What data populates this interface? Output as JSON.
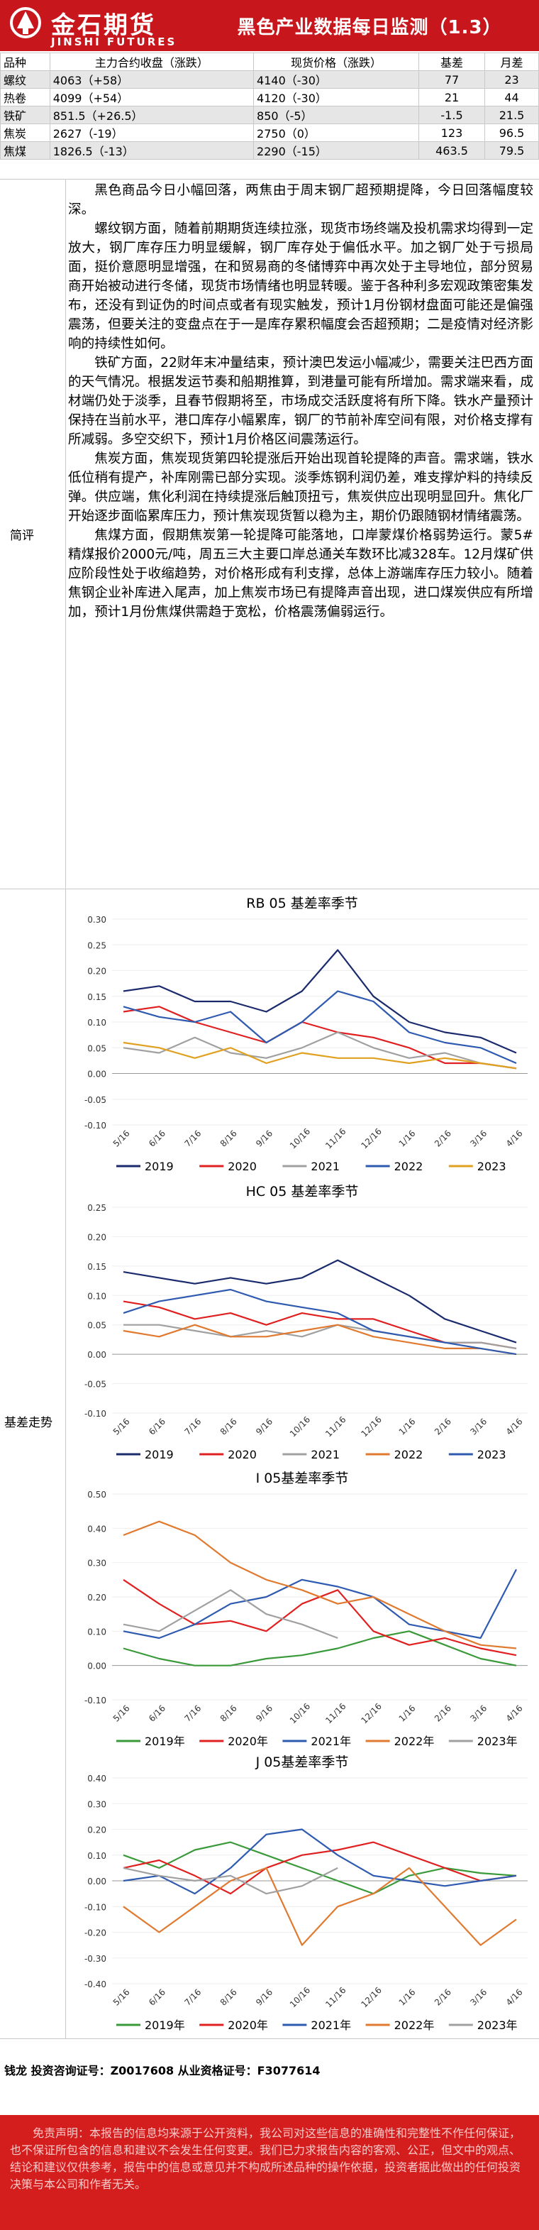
{
  "header": {
    "logo_cn": "金石期货",
    "logo_en": "JINSHI FUTURES",
    "title": "黑色产业数据每日监测（1.3）"
  },
  "table": {
    "headers": [
      "品种",
      "主力合约收盘（涨跌）",
      "现货价格（涨跌）",
      "基差",
      "月差"
    ],
    "rows": [
      [
        "螺纹",
        "4063（+58）",
        "4140（-30）",
        "77",
        "23"
      ],
      [
        "热卷",
        "4099（+54）",
        "4120（-30）",
        "21",
        "44"
      ],
      [
        "铁矿",
        "851.5（+26.5）",
        "850（-5）",
        "-1.5",
        "21.5"
      ],
      [
        "焦炭",
        "2627（-19）",
        "2750（0）",
        "123",
        "96.5"
      ],
      [
        "焦煤",
        "1826.5（-13）",
        "2290（-15）",
        "463.5",
        "79.5"
      ]
    ]
  },
  "section_labels": {
    "comment": "简评",
    "basis": "基差走势"
  },
  "comment": [
    "黑色商品今日小幅回落，两焦由于周末钢厂超预期提降，今日回落幅度较深。",
    "螺纹钢方面，随着前期期货连续拉涨，现货市场终端及投机需求均得到一定放大，钢厂库存压力明显缓解，钢厂库存处于偏低水平。加之钢厂处于亏损局面，挺价意愿明显增强，在和贸易商的冬储博弈中再次处于主导地位，部分贸易商开始被动进行冬储，现货市场情绪也明显转暖。鉴于各种利多宏观政策密集发布，还没有到证伪的时间点或者有现实触发，预计1月份钢材盘面可能还是偏强震荡，但要关注的变盘点在于一是库存累积幅度会否超预期；二是疫情对经济影响的持续性如何。",
    "铁矿方面，22财年末冲量结束，预计澳巴发运小幅减少，需要关注巴西方面的天气情况。根据发运节奏和船期推算，到港量可能有所增加。需求端来看，成材端仍处于淡季，且春节假期将至，市场成交活跃度将有所下降。铁水产量预计保持在当前水平，港口库存小幅累库，钢厂的节前补库空间有限，对价格支撑有所减弱。多空交织下，预计1月价格区间震荡运行。",
    "焦炭方面，焦炭现货第四轮提涨后开始出现首轮提降的声音。需求端，铁水低位稍有提产，补库刚需已部分实现。淡季炼钢利润仍差，难支撑炉料的持续反弹。供应端，焦化利润在持续提涨后触顶扭亏，焦炭供应出现明显回升。焦化厂开始逐步面临累库压力，预计焦炭现货暂以稳为主，期价仍跟随钢材情绪震荡。",
    "焦煤方面，假期焦炭第一轮提降可能落地，口岸蒙煤价格弱势运行。蒙5#精煤报价2000元/吨，周五三大主要口岸总通关车数环比减328车。12月煤矿供应阶段性处于收缩趋势，对价格形成有利支撑，总体上游端库存压力较小。随着焦钢企业补库进入尾声，加上焦炭市场已有提降声音出现，进口煤炭供应有所增加，预计1月份焦煤供需趋于宽松，价格震荡偏弱运行。"
  ],
  "charts": [
    {
      "title": "RB 05 基差率季节",
      "legend_labels": [
        "2019",
        "2020",
        "2021",
        "2022",
        "2023"
      ],
      "y_ticks": [
        "0.30",
        "0.25",
        "0.20",
        "0.15",
        "0.10",
        "0.05",
        "0.00",
        "-0.05",
        "-0.10"
      ],
      "x_ticks": [
        "5/16",
        "6/16",
        "7/16",
        "8/16",
        "9/16",
        "10/16",
        "11/16",
        "12/16",
        "1/16",
        "2/16",
        "3/16",
        "4/16"
      ]
    },
    {
      "title": "HC 05 基差率季节",
      "legend_labels": [
        "2019",
        "2020",
        "2021",
        "2022",
        "2023"
      ],
      "y_ticks": [
        "0.25",
        "0.20",
        "0.15",
        "0.10",
        "0.05",
        "0.00",
        "-0.05",
        "-0.10"
      ],
      "x_ticks": [
        "5/16",
        "6/16",
        "7/16",
        "8/16",
        "9/16",
        "10/16",
        "11/16",
        "12/16",
        "1/16",
        "2/16",
        "3/16",
        "4/16"
      ]
    },
    {
      "title": "I 05基差率季节",
      "legend_labels": [
        "2019年",
        "2020年",
        "2021年",
        "2022年",
        "2023年"
      ],
      "y_ticks": [
        "0.50",
        "0.40",
        "0.30",
        "0.20",
        "0.10",
        "0.00",
        "-0.10"
      ],
      "x_ticks": [
        "5/16",
        "6/16",
        "7/16",
        "8/16",
        "9/16",
        "10/16",
        "11/16",
        "12/16",
        "1/16",
        "2/16",
        "3/16",
        "4/16"
      ]
    },
    {
      "title": "J 05基差率季节",
      "legend_labels": [
        "2019年",
        "2020年",
        "2021年",
        "2022年",
        "2023年"
      ],
      "y_ticks": [
        "0.40",
        "0.30",
        "0.20",
        "0.10",
        "0.00",
        "-0.10",
        "-0.20",
        "-0.30",
        "-0.40"
      ],
      "x_ticks": [
        "5/16",
        "6/16",
        "7/16",
        "8/16",
        "9/16",
        "10/16",
        "11/16",
        "12/16",
        "1/16",
        "2/16",
        "3/16",
        "4/16"
      ]
    }
  ],
  "chart_data": [
    {
      "type": "line",
      "title": "RB 05 基差率季节",
      "ylim": [
        -0.1,
        0.3
      ],
      "x": [
        "5/16",
        "6/16",
        "7/16",
        "8/16",
        "9/16",
        "10/16",
        "11/16",
        "12/16",
        "1/16",
        "2/16",
        "3/16",
        "4/16"
      ],
      "series": [
        {
          "name": "2019",
          "color": "#1a2a6c",
          "values": [
            0.16,
            0.17,
            0.14,
            0.14,
            0.12,
            0.16,
            0.24,
            0.15,
            0.1,
            0.08,
            0.07,
            0.04
          ]
        },
        {
          "name": "2020",
          "color": "#e02020",
          "values": [
            0.12,
            0.13,
            0.1,
            0.08,
            0.06,
            0.1,
            0.08,
            0.07,
            0.05,
            0.02,
            0.02,
            0.01
          ]
        },
        {
          "name": "2021",
          "color": "#a0a0a0",
          "values": [
            0.05,
            0.04,
            0.07,
            0.04,
            0.03,
            0.05,
            0.08,
            0.05,
            0.03,
            0.04,
            0.02,
            0.01
          ]
        },
        {
          "name": "2022",
          "color": "#2e5ab0",
          "values": [
            0.13,
            0.11,
            0.1,
            0.12,
            0.06,
            0.1,
            0.16,
            0.14,
            0.08,
            0.06,
            0.05,
            0.02
          ]
        },
        {
          "name": "2023",
          "color": "#e0a020",
          "values": [
            0.06,
            0.05,
            0.03,
            0.05,
            0.02,
            0.04,
            0.03,
            0.03,
            0.02,
            0.03,
            0.02,
            0.01
          ]
        }
      ]
    },
    {
      "type": "line",
      "title": "HC 05 基差率季节",
      "ylim": [
        -0.1,
        0.25
      ],
      "x": [
        "5/16",
        "6/16",
        "7/16",
        "8/16",
        "9/16",
        "10/16",
        "11/16",
        "12/16",
        "1/16",
        "2/16",
        "3/16",
        "4/16"
      ],
      "series": [
        {
          "name": "2019",
          "color": "#1a2a6c",
          "values": [
            0.14,
            0.13,
            0.12,
            0.13,
            0.12,
            0.13,
            0.16,
            0.13,
            0.1,
            0.06,
            0.04,
            0.02
          ]
        },
        {
          "name": "2020",
          "color": "#e02020",
          "values": [
            0.09,
            0.08,
            0.06,
            0.07,
            0.05,
            0.07,
            0.06,
            0.06,
            0.04,
            0.02,
            0.02,
            0.01
          ]
        },
        {
          "name": "2021",
          "color": "#a0a0a0",
          "values": [
            0.05,
            0.05,
            0.04,
            0.03,
            0.04,
            0.03,
            0.05,
            0.04,
            0.03,
            0.02,
            0.02,
            0.01
          ]
        },
        {
          "name": "2022",
          "color": "#e07a30",
          "values": [
            0.04,
            0.03,
            0.05,
            0.03,
            0.03,
            0.04,
            0.05,
            0.03,
            0.02,
            0.01,
            0.01,
            0.0
          ]
        },
        {
          "name": "2023",
          "color": "#2e5ab0",
          "values": [
            0.07,
            0.09,
            0.1,
            0.11,
            0.09,
            0.08,
            0.07,
            0.04,
            0.03,
            0.02,
            0.01,
            0.0
          ]
        }
      ]
    },
    {
      "type": "line",
      "title": "I 05基差率季节",
      "ylim": [
        -0.1,
        0.5
      ],
      "x": [
        "5/16",
        "6/16",
        "7/16",
        "8/16",
        "9/16",
        "10/16",
        "11/16",
        "12/16",
        "1/16",
        "2/16",
        "3/16",
        "4/16"
      ],
      "series": [
        {
          "name": "2019年",
          "color": "#3a9a3a",
          "values": [
            0.05,
            0.02,
            0.0,
            0.0,
            0.02,
            0.03,
            0.05,
            0.08,
            0.1,
            0.06,
            0.02,
            0.0
          ]
        },
        {
          "name": "2020年",
          "color": "#e02020",
          "values": [
            0.25,
            0.18,
            0.12,
            0.13,
            0.1,
            0.18,
            0.22,
            0.1,
            0.06,
            0.08,
            0.05,
            0.03
          ]
        },
        {
          "name": "2021年",
          "color": "#2e5ab0",
          "values": [
            0.1,
            0.08,
            0.12,
            0.18,
            0.2,
            0.25,
            0.23,
            0.2,
            0.12,
            0.1,
            0.08,
            0.28
          ]
        },
        {
          "name": "2022年",
          "color": "#e07a30",
          "values": [
            0.38,
            0.42,
            0.38,
            0.3,
            0.25,
            0.22,
            0.18,
            0.2,
            0.15,
            0.1,
            0.06,
            0.05
          ]
        },
        {
          "name": "2023年",
          "color": "#a0a0a0",
          "values": [
            0.12,
            0.1,
            0.16,
            0.22,
            0.15,
            0.12,
            0.08,
            null,
            null,
            null,
            null,
            null
          ]
        }
      ]
    },
    {
      "type": "line",
      "title": "J 05基差率季节",
      "ylim": [
        -0.4,
        0.4
      ],
      "x": [
        "5/16",
        "6/16",
        "7/16",
        "8/16",
        "9/16",
        "10/16",
        "11/16",
        "12/16",
        "1/16",
        "2/16",
        "3/16",
        "4/16"
      ],
      "series": [
        {
          "name": "2019年",
          "color": "#3a9a3a",
          "values": [
            0.1,
            0.05,
            0.12,
            0.15,
            0.1,
            0.05,
            0.0,
            -0.05,
            0.02,
            0.05,
            0.03,
            0.02
          ]
        },
        {
          "name": "2020年",
          "color": "#e02020",
          "values": [
            0.05,
            0.08,
            0.02,
            -0.05,
            0.05,
            0.1,
            0.12,
            0.15,
            0.1,
            0.05,
            0.0,
            0.02
          ]
        },
        {
          "name": "2021年",
          "color": "#2e5ab0",
          "values": [
            0.0,
            0.02,
            -0.05,
            0.05,
            0.18,
            0.2,
            0.1,
            0.02,
            0.0,
            -0.02,
            0.0,
            0.02
          ]
        },
        {
          "name": "2022年",
          "color": "#e07a30",
          "values": [
            -0.1,
            -0.2,
            -0.1,
            0.0,
            0.05,
            -0.25,
            -0.1,
            -0.05,
            0.05,
            -0.1,
            -0.25,
            -0.15
          ]
        },
        {
          "name": "2023年",
          "color": "#a0a0a0",
          "values": [
            0.05,
            0.02,
            0.0,
            0.02,
            -0.05,
            -0.02,
            0.05,
            null,
            null,
            null,
            null,
            null
          ]
        }
      ]
    }
  ],
  "author": "钱龙 投资咨询证号：Z0017608 从业资格证号：F3077614",
  "disclaimer": "免责声明：本报告的信息均来源于公开资料，我公司对这些信息的准确性和完整性不作任何保证，也不保证所包含的信息和建议不会发生任何变更。我们已力求报告内容的客观、公正，但文中的观点、结论和建议仅供参考，报告中的信息或意见并不构成所述品种的操作依据，投资者据此做出的任何投资决策与本公司和作者无关。"
}
